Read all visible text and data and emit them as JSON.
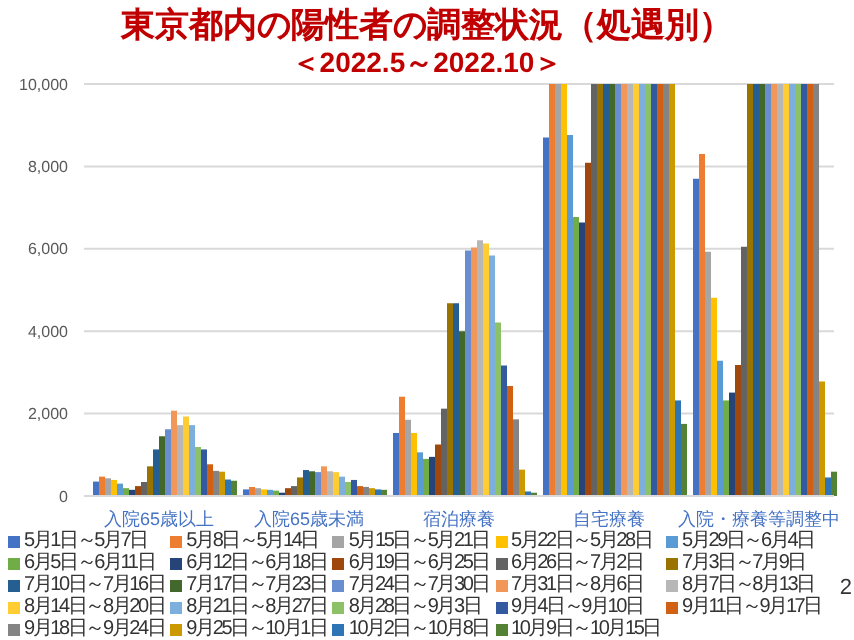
{
  "chart_data": {
    "type": "bar",
    "title": "東京都内の陽性者の調整状況（処遇別）",
    "subtitle": "＜2022.5～2022.10＞",
    "categories": [
      "入院65歳以上",
      "入院65歳未満",
      "宿泊療養",
      "自宅療養",
      "入院・療養等調整中"
    ],
    "ylim": [
      0,
      10000
    ],
    "yticks": [
      0,
      {
        "value": 2000,
        "label": "2,000"
      },
      {
        "value": 4000,
        "label": "4,000"
      },
      {
        "value": 6000,
        "label": "6,000"
      },
      {
        "value": 8000,
        "label": "8,000"
      },
      {
        "value": 10000,
        "label": "10,000"
      }
    ],
    "grid": "y",
    "legend": "bottom",
    "annotations": [
      "2"
    ],
    "series": [
      {
        "name": "5月1日～5月7日",
        "color": "#4472c4",
        "values": [
          350,
          160,
          1530,
          8700,
          7700
        ]
      },
      {
        "name": "5月8日～5月14日",
        "color": "#ed7d31",
        "values": [
          470,
          220,
          2410,
          10000,
          8300
        ]
      },
      {
        "name": "5月15日～5月21日",
        "color": "#a5a5a5",
        "values": [
          430,
          190,
          1850,
          10000,
          5930
        ]
      },
      {
        "name": "5月22日～5月28日",
        "color": "#ffc000",
        "values": [
          390,
          160,
          1530,
          10000,
          4810
        ]
      },
      {
        "name": "5月29日～6月4日",
        "color": "#5b9bd5",
        "values": [
          300,
          150,
          1060,
          8760,
          3280
        ]
      },
      {
        "name": "6月5日～6月11日",
        "color": "#70ad47",
        "values": [
          190,
          130,
          900,
          6770,
          2320
        ]
      },
      {
        "name": "6月12日～6月18日",
        "color": "#264478",
        "values": [
          150,
          80,
          950,
          6640,
          2510
        ]
      },
      {
        "name": "6月19日～6月25日",
        "color": "#9e480e",
        "values": [
          240,
          190,
          1250,
          8090,
          3180
        ]
      },
      {
        "name": "6月26日～7月2日",
        "color": "#636363",
        "values": [
          340,
          240,
          2120,
          10000,
          6050
        ]
      },
      {
        "name": "7月3日～7月9日",
        "color": "#997300",
        "values": [
          720,
          450,
          4680,
          10000,
          10000
        ]
      },
      {
        "name": "7月10日～7月16日",
        "color": "#255e91",
        "values": [
          1130,
          630,
          4680,
          10000,
          10000
        ]
      },
      {
        "name": "7月17日～7月23日",
        "color": "#43682b",
        "values": [
          1450,
          600,
          4000,
          10000,
          10000
        ]
      },
      {
        "name": "7月24日～7月30日",
        "color": "#698ed0",
        "values": [
          1620,
          580,
          5960,
          10000,
          10000
        ]
      },
      {
        "name": "7月31日～8月6日",
        "color": "#f1975a",
        "values": [
          2070,
          720,
          6030,
          10000,
          10000
        ]
      },
      {
        "name": "8月7日～8月13日",
        "color": "#b7b7b7",
        "values": [
          1720,
          600,
          6210,
          10000,
          10000
        ]
      },
      {
        "name": "8月14日～8月20日",
        "color": "#ffcd33",
        "values": [
          1930,
          580,
          6130,
          10000,
          10000
        ]
      },
      {
        "name": "8月21日～8月27日",
        "color": "#7cafdd",
        "values": [
          1720,
          470,
          5840,
          10000,
          10000
        ]
      },
      {
        "name": "8月28日～9月3日",
        "color": "#8cc168",
        "values": [
          1190,
          340,
          4210,
          10000,
          10000
        ]
      },
      {
        "name": "9月4日～9月10日",
        "color": "#335aa1",
        "values": [
          1130,
          390,
          3170,
          10000,
          10000
        ]
      },
      {
        "name": "9月11日～9月17日",
        "color": "#d26012",
        "values": [
          770,
          240,
          2670,
          10000,
          10000
        ]
      },
      {
        "name": "9月18日～9月24日",
        "color": "#848484",
        "values": [
          610,
          220,
          1860,
          10000,
          10000
        ]
      },
      {
        "name": "9月25日～10月1日",
        "color": "#cc9a00",
        "values": [
          590,
          190,
          640,
          10000,
          2780
        ]
      },
      {
        "name": "10月2日～10月8日",
        "color": "#2e75b6",
        "values": [
          400,
          160,
          110,
          2320,
          450
        ]
      },
      {
        "name": "10月9日～10月15日",
        "color": "#548235",
        "values": [
          370,
          150,
          80,
          1750,
          590
        ]
      }
    ]
  }
}
